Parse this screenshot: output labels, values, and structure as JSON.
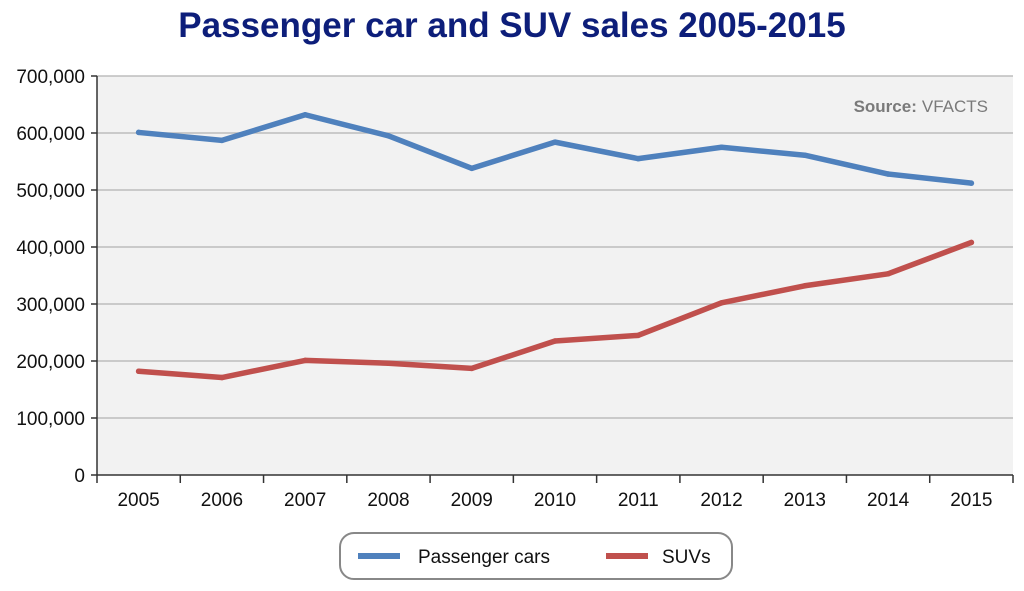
{
  "chart_data": {
    "type": "line",
    "title": "Passenger car and SUV sales 2005-2015",
    "source_label": "Source:",
    "source_value": "VFACTS",
    "x": [
      "2005",
      "2006",
      "2007",
      "2008",
      "2009",
      "2010",
      "2011",
      "2012",
      "2013",
      "2014",
      "2015"
    ],
    "y_ticks": [
      "0",
      "100,000",
      "200,000",
      "300,000",
      "400,000",
      "500,000",
      "600,000",
      "700,000"
    ],
    "ylim": [
      0,
      700000
    ],
    "grid": true,
    "legend_position": "bottom",
    "series": [
      {
        "name": "Passenger cars",
        "color": "#4f81bd",
        "values": [
          601000,
          587000,
          632000,
          595000,
          538000,
          584000,
          555000,
          575000,
          561000,
          528000,
          512000
        ]
      },
      {
        "name": "SUVs",
        "color": "#c0504d",
        "values": [
          182000,
          171000,
          201000,
          196000,
          187000,
          235000,
          245000,
          302000,
          332000,
          353000,
          408000
        ]
      }
    ]
  },
  "colors": {
    "title": "#0d1e7a",
    "plot_background": "#f2f2f2",
    "gridline": "#bdbdbd"
  }
}
